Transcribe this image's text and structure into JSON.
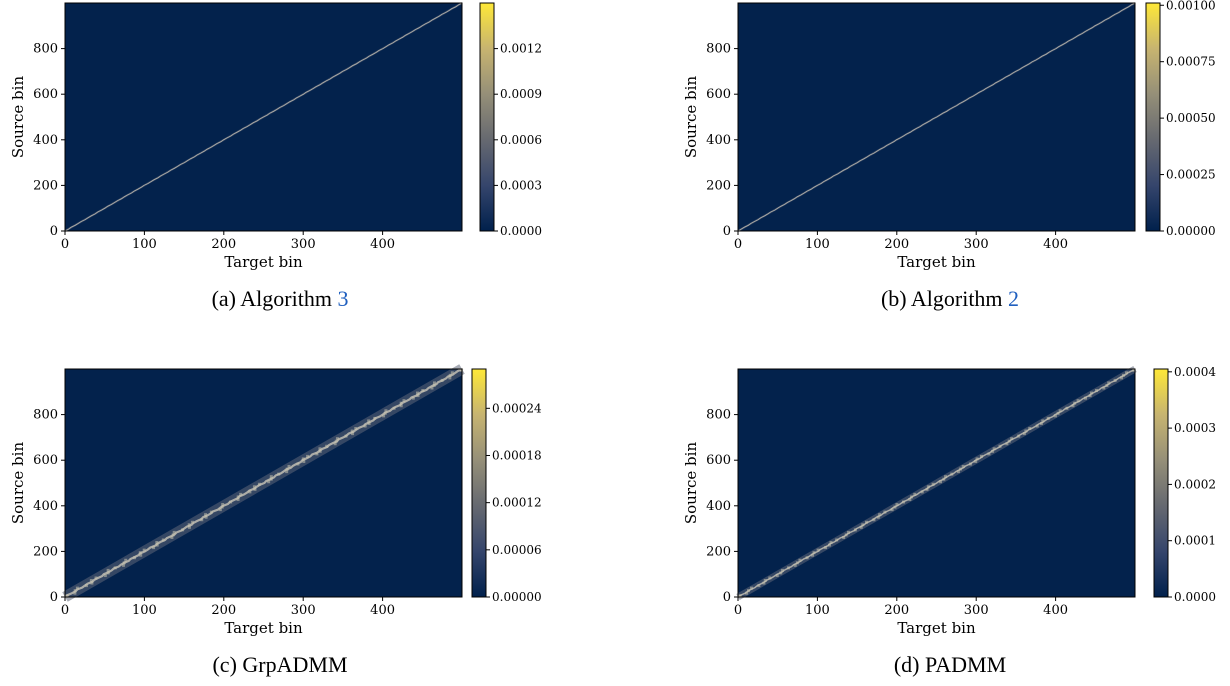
{
  "chart_data": [
    {
      "type": "heatmap",
      "title": "",
      "caption": "(a) Algorithm",
      "caption_ref": "3",
      "xlabel": "Target bin",
      "ylabel": "Source bin",
      "xlim": [
        0,
        500
      ],
      "ylim": [
        0,
        1000
      ],
      "xticks": [
        0,
        100,
        200,
        300,
        400
      ],
      "yticks": [
        0,
        200,
        400,
        600,
        800
      ],
      "diagonal": {
        "from": [
          0,
          0
        ],
        "to": [
          500,
          1000
        ]
      },
      "band_width": "thin",
      "colorbar": {
        "min": 0,
        "max": 0.0015,
        "ticks": [
          "0.0000",
          "0.0003",
          "0.0006",
          "0.0009",
          "0.0012"
        ],
        "tick_values": [
          0,
          0.0003,
          0.0006,
          0.0009,
          0.0012
        ]
      }
    },
    {
      "type": "heatmap",
      "title": "",
      "caption": "(b) Algorithm",
      "caption_ref": "2",
      "xlabel": "Target bin",
      "ylabel": "Source bin",
      "xlim": [
        0,
        500
      ],
      "ylim": [
        0,
        1000
      ],
      "xticks": [
        0,
        100,
        200,
        300,
        400
      ],
      "yticks": [
        0,
        200,
        400,
        600,
        800
      ],
      "diagonal": {
        "from": [
          0,
          0
        ],
        "to": [
          500,
          1000
        ]
      },
      "band_width": "thin",
      "colorbar": {
        "min": 0,
        "max": 0.00101,
        "ticks": [
          "0.00000",
          "0.00025",
          "0.00050",
          "0.00075",
          "0.00100"
        ],
        "tick_values": [
          0,
          0.00025,
          0.0005,
          0.00075,
          0.001
        ]
      }
    },
    {
      "type": "heatmap",
      "title": "",
      "caption": "(c) GrpADMM",
      "caption_ref": "",
      "xlabel": "Target bin",
      "ylabel": "Source bin",
      "xlim": [
        0,
        500
      ],
      "ylim": [
        0,
        1000
      ],
      "xticks": [
        0,
        100,
        200,
        300,
        400
      ],
      "yticks": [
        0,
        200,
        400,
        600,
        800
      ],
      "diagonal": {
        "from": [
          0,
          0
        ],
        "to": [
          500,
          1000
        ]
      },
      "band_width": "wide",
      "colorbar": {
        "min": 0,
        "max": 0.00029,
        "ticks": [
          "0.00000",
          "0.00006",
          "0.00012",
          "0.00018",
          "0.00024"
        ],
        "tick_values": [
          0,
          6e-05,
          0.00012,
          0.00018,
          0.00024
        ]
      }
    },
    {
      "type": "heatmap",
      "title": "",
      "caption": "(d) PADMM",
      "caption_ref": "",
      "xlabel": "Target bin",
      "ylabel": "Source bin",
      "xlim": [
        0,
        500
      ],
      "ylim": [
        0,
        1000
      ],
      "xticks": [
        0,
        100,
        200,
        300,
        400
      ],
      "yticks": [
        0,
        200,
        400,
        600,
        800
      ],
      "diagonal": {
        "from": [
          0,
          0
        ],
        "to": [
          500,
          1000
        ]
      },
      "band_width": "medium",
      "colorbar": {
        "min": 0,
        "max": 0.000405,
        "ticks": [
          "0.0000",
          "0.0001",
          "0.0002",
          "0.0003",
          "0.0004"
        ],
        "tick_values": [
          0,
          0.0001,
          0.0002,
          0.0003,
          0.0004
        ]
      }
    }
  ],
  "colors": {
    "background": "#03224c",
    "band_core": "#b9b7ae",
    "band_edge": "#5f6678",
    "colormap": [
      "#00204c",
      "#35456c",
      "#666970",
      "#958f78",
      "#c7b470",
      "#fee838"
    ]
  }
}
